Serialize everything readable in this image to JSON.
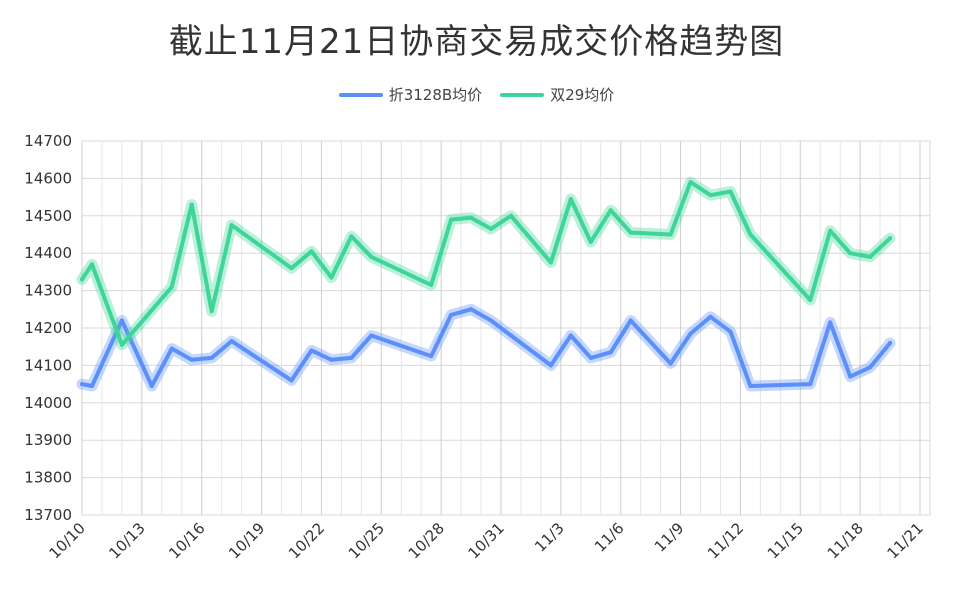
{
  "chart_data": {
    "type": "line",
    "title": "截止11月21日协商交易成交价格趋势图",
    "xlabel": "",
    "ylabel": "",
    "ylim": [
      13700,
      14700
    ],
    "yticks": [
      13700,
      13800,
      13900,
      14000,
      14100,
      14200,
      14300,
      14400,
      14500,
      14600,
      14700
    ],
    "x_start": "10/10",
    "x_end": "11/21",
    "xtick_labels": [
      "10/10",
      "10/13",
      "10/16",
      "10/19",
      "10/22",
      "10/25",
      "10/28",
      "10/31",
      "11/3",
      "11/6",
      "11/9",
      "11/12",
      "11/15",
      "11/18",
      "11/21"
    ],
    "grid": true,
    "legend_position": "top-center",
    "series": [
      {
        "name": "折3128B均价",
        "color": "#5b8ff9",
        "points": [
          {
            "x": "10/10",
            "y": 14050
          },
          {
            "x": "10/10.5",
            "y": 14045
          },
          {
            "x": "10/12",
            "y": 14220
          },
          {
            "x": "10/13.5",
            "y": 14045
          },
          {
            "x": "10/14.5",
            "y": 14145
          },
          {
            "x": "10/15.5",
            "y": 14115
          },
          {
            "x": "10/16.5",
            "y": 14120
          },
          {
            "x": "10/17.5",
            "y": 14165
          },
          {
            "x": "10/20.5",
            "y": 14060
          },
          {
            "x": "10/21.5",
            "y": 14140
          },
          {
            "x": "10/22.5",
            "y": 14115
          },
          {
            "x": "10/23.5",
            "y": 14120
          },
          {
            "x": "10/24.5",
            "y": 14180
          },
          {
            "x": "10/27.5",
            "y": 14125
          },
          {
            "x": "10/28.5",
            "y": 14235
          },
          {
            "x": "10/29.5",
            "y": 14250
          },
          {
            "x": "10/30.5",
            "y": 14220
          },
          {
            "x": "10/31.5",
            "y": 14180
          },
          {
            "x": "11/2.5",
            "y": 14100
          },
          {
            "x": "11/3.5",
            "y": 14180
          },
          {
            "x": "11/4.5",
            "y": 14120
          },
          {
            "x": "11/5.5",
            "y": 14135
          },
          {
            "x": "11/6.5",
            "y": 14220
          },
          {
            "x": "11/8.5",
            "y": 14105
          },
          {
            "x": "11/9.5",
            "y": 14185
          },
          {
            "x": "11/10.5",
            "y": 14230
          },
          {
            "x": "11/11.5",
            "y": 14190
          },
          {
            "x": "11/12.5",
            "y": 14045
          },
          {
            "x": "11/15.5",
            "y": 14050
          },
          {
            "x": "11/16.5",
            "y": 14215
          },
          {
            "x": "11/17.5",
            "y": 14070
          },
          {
            "x": "11/18.5",
            "y": 14095
          },
          {
            "x": "11/19.5",
            "y": 14160
          }
        ]
      },
      {
        "name": "双29均价",
        "color": "#3dd598",
        "points": [
          {
            "x": "10/10",
            "y": 14330
          },
          {
            "x": "10/10.5",
            "y": 14370
          },
          {
            "x": "10/12",
            "y": 14155
          },
          {
            "x": "10/14.5",
            "y": 14310
          },
          {
            "x": "10/15.5",
            "y": 14530
          },
          {
            "x": "10/16.5",
            "y": 14245
          },
          {
            "x": "10/17.5",
            "y": 14475
          },
          {
            "x": "10/20.5",
            "y": 14360
          },
          {
            "x": "10/21.5",
            "y": 14405
          },
          {
            "x": "10/22.5",
            "y": 14335
          },
          {
            "x": "10/23.5",
            "y": 14445
          },
          {
            "x": "10/24.5",
            "y": 14390
          },
          {
            "x": "10/27.5",
            "y": 14315
          },
          {
            "x": "10/28.5",
            "y": 14490
          },
          {
            "x": "10/29.5",
            "y": 14495
          },
          {
            "x": "10/30.5",
            "y": 14465
          },
          {
            "x": "10/31.5",
            "y": 14500
          },
          {
            "x": "11/2.5",
            "y": 14375
          },
          {
            "x": "11/3.5",
            "y": 14545
          },
          {
            "x": "11/4.5",
            "y": 14430
          },
          {
            "x": "11/5.5",
            "y": 14515
          },
          {
            "x": "11/6.5",
            "y": 14455
          },
          {
            "x": "11/8.5",
            "y": 14450
          },
          {
            "x": "11/9.5",
            "y": 14590
          },
          {
            "x": "11/10.5",
            "y": 14555
          },
          {
            "x": "11/11.5",
            "y": 14565
          },
          {
            "x": "11/12.5",
            "y": 14450
          },
          {
            "x": "11/15.5",
            "y": 14275
          },
          {
            "x": "11/16.5",
            "y": 14460
          },
          {
            "x": "11/17.5",
            "y": 14400
          },
          {
            "x": "11/18.5",
            "y": 14390
          },
          {
            "x": "11/19.5",
            "y": 14440
          }
        ]
      }
    ]
  }
}
